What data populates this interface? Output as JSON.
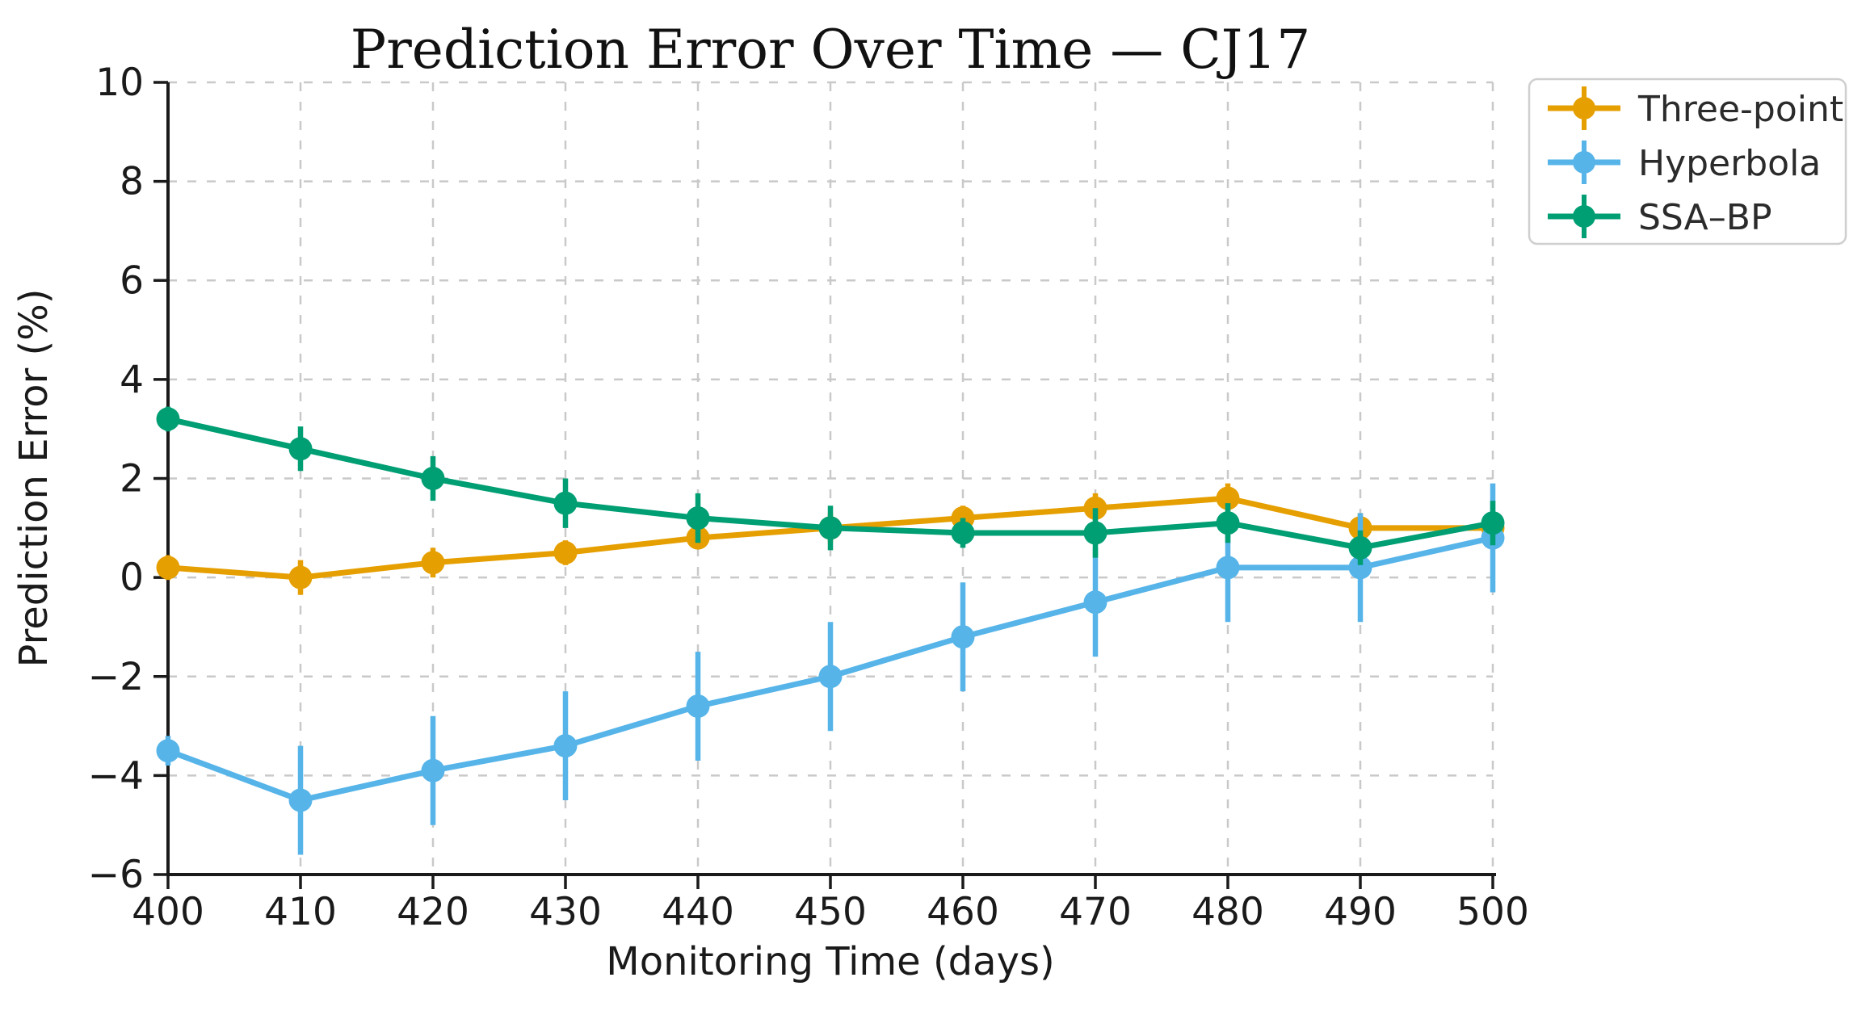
{
  "chart_data": {
    "type": "line",
    "title": "Prediction Error Over Time — CJ17",
    "xlabel": "Monitoring Time (days)",
    "ylabel": "Prediction Error (%)",
    "x": [
      400,
      410,
      420,
      430,
      440,
      450,
      460,
      470,
      480,
      490,
      500
    ],
    "xlim": [
      400,
      500
    ],
    "ylim": [
      -6,
      10
    ],
    "x_ticks": [
      400,
      410,
      420,
      430,
      440,
      450,
      460,
      470,
      480,
      490,
      500
    ],
    "y_ticks": [
      10,
      8,
      6,
      4,
      2,
      0,
      -2,
      -4,
      -6
    ],
    "grid": true,
    "grid_style": "dashed",
    "grid_color": "#c9c9c9",
    "legend_position": "outside-top-right",
    "series": [
      {
        "name": "Three-point",
        "color": "#E69F00",
        "marker": "circle",
        "values": [
          0.2,
          0.0,
          0.3,
          0.5,
          0.8,
          1.0,
          1.2,
          1.4,
          1.6,
          1.0,
          1.0
        ],
        "yerr": [
          0.25,
          0.35,
          0.3,
          0.25,
          0.2,
          0.3,
          0.25,
          0.3,
          0.3,
          0.3,
          0.3
        ]
      },
      {
        "name": "Hyperbola",
        "color": "#56B4E9",
        "marker": "circle",
        "values": [
          -3.5,
          -4.5,
          -3.9,
          -3.4,
          -2.6,
          -2.0,
          -1.2,
          -0.5,
          0.2,
          0.2,
          0.8
        ],
        "yerr": [
          0.3,
          1.1,
          1.1,
          1.1,
          1.1,
          1.1,
          1.1,
          1.1,
          1.1,
          1.1,
          1.1
        ]
      },
      {
        "name": "SSA–BP",
        "color": "#009E73",
        "marker": "circle",
        "values": [
          3.2,
          2.6,
          2.0,
          1.5,
          1.2,
          1.0,
          0.9,
          0.9,
          1.1,
          0.6,
          1.1
        ],
        "yerr": [
          0.25,
          0.45,
          0.45,
          0.5,
          0.5,
          0.45,
          0.3,
          0.5,
          0.4,
          0.35,
          0.45
        ]
      }
    ]
  }
}
